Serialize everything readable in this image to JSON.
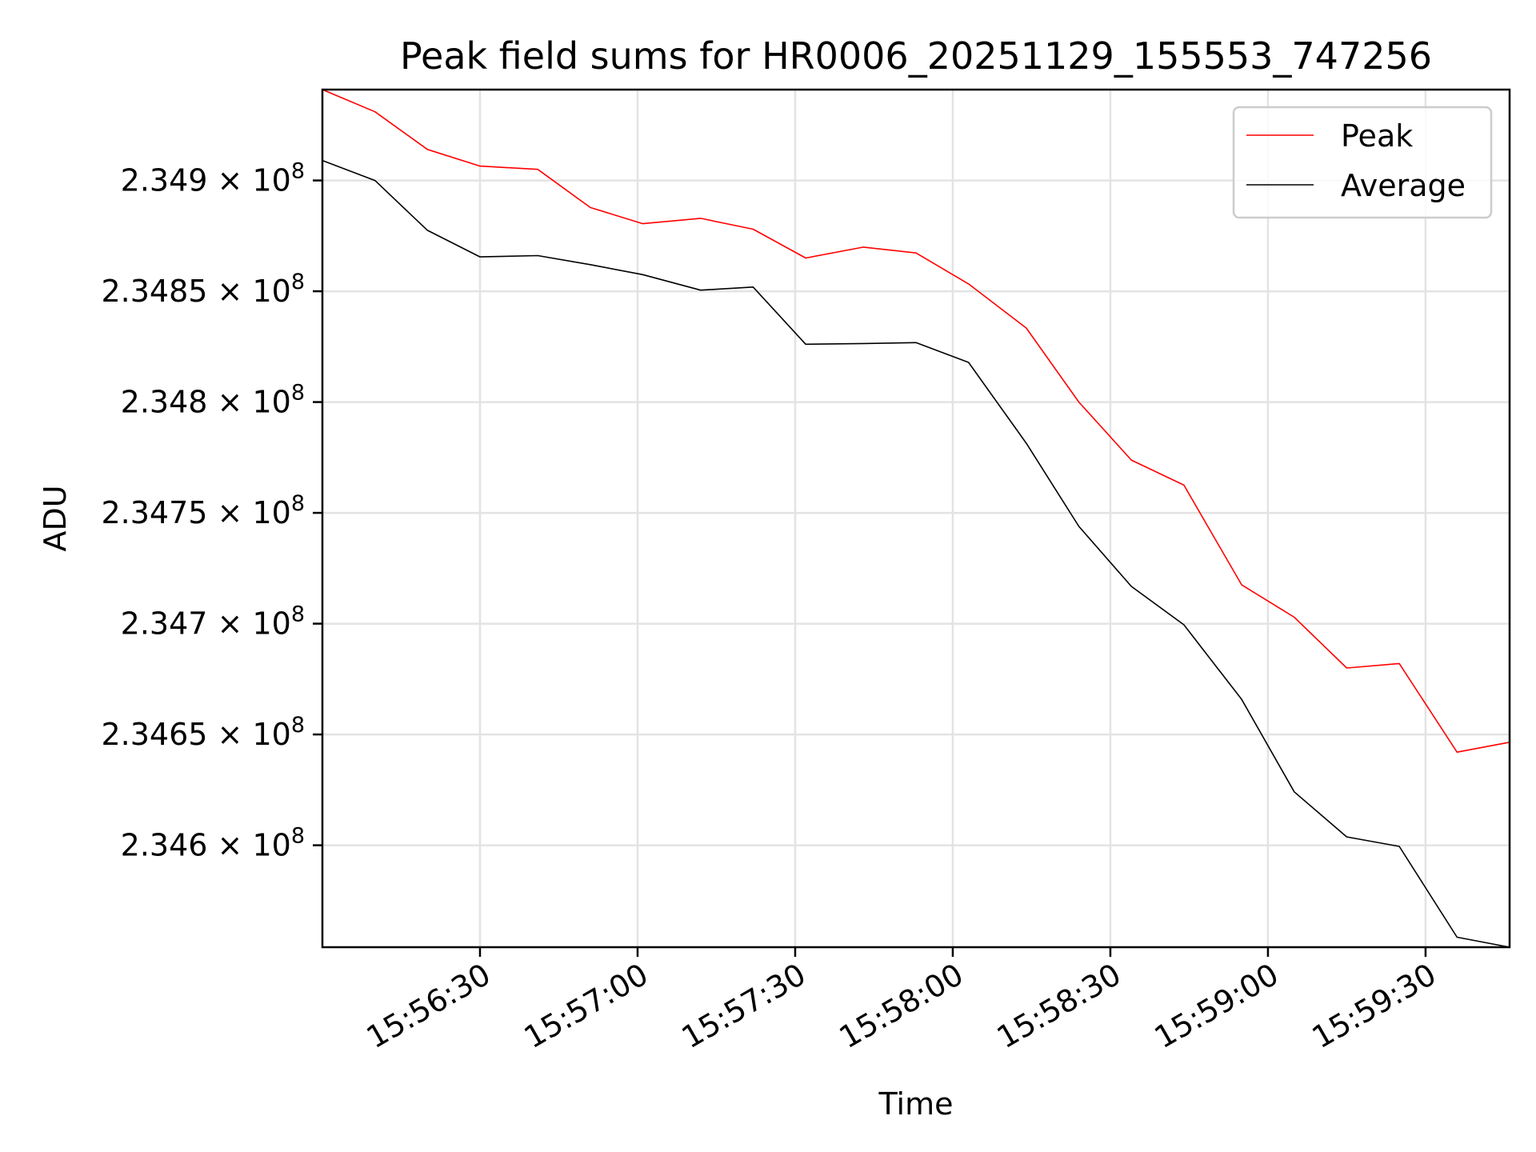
{
  "chart_data": {
    "type": "line",
    "title": "Peak field sums for HR0006_20251129_155553_747256",
    "xlabel": "Time",
    "ylabel": "ADU",
    "x": [
      "15:56:00",
      "15:56:10",
      "15:56:20",
      "15:56:30",
      "15:56:41",
      "15:56:51",
      "15:57:01",
      "15:57:12",
      "15:57:22",
      "15:57:32",
      "15:57:43",
      "15:57:53",
      "15:58:03",
      "15:58:14",
      "15:58:24",
      "15:58:34",
      "15:58:44",
      "15:58:55",
      "15:59:05",
      "15:59:15",
      "15:59:25",
      "15:59:36",
      "15:59:46"
    ],
    "series": [
      {
        "name": "Peak",
        "color": "#ff0000",
        "values": [
          234941000,
          234931000,
          234914000,
          234906500,
          234905000,
          234887800,
          234880500,
          234882900,
          234878000,
          234865000,
          234869900,
          234867300,
          234853300,
          234833400,
          234800000,
          234773800,
          234762500,
          234717500,
          234702900,
          234680000,
          234682000,
          234642000,
          234646500
        ]
      },
      {
        "name": "Average",
        "color": "#000000",
        "values": [
          234909000,
          234900000,
          234877500,
          234865500,
          234866100,
          234862000,
          234857500,
          234850500,
          234851900,
          234826100,
          234826400,
          234826800,
          234817900,
          234781400,
          234743900,
          234716800,
          234699500,
          234665800,
          234624100,
          234603800,
          234599500,
          234558500,
          234554000
        ]
      }
    ],
    "x_ticks": [
      "15:56:30",
      "15:57:00",
      "15:57:30",
      "15:58:00",
      "15:58:30",
      "15:59:00",
      "15:59:30"
    ],
    "xlim": [
      "15:56:00",
      "15:59:46"
    ],
    "y_ticks": [
      {
        "value": 234600000,
        "mantissa": "2.346"
      },
      {
        "value": 234650000,
        "mantissa": "2.3465"
      },
      {
        "value": 234700000,
        "mantissa": "2.347"
      },
      {
        "value": 234750000,
        "mantissa": "2.3475"
      },
      {
        "value": 234800000,
        "mantissa": "2.348"
      },
      {
        "value": 234850000,
        "mantissa": "2.3485"
      },
      {
        "value": 234900000,
        "mantissa": "2.349"
      }
    ],
    "y_tick_suffix": "× 10",
    "y_tick_exponent": "8",
    "ylim": [
      234554000,
      234941000
    ],
    "grid": true,
    "legend_position": "top-right"
  }
}
